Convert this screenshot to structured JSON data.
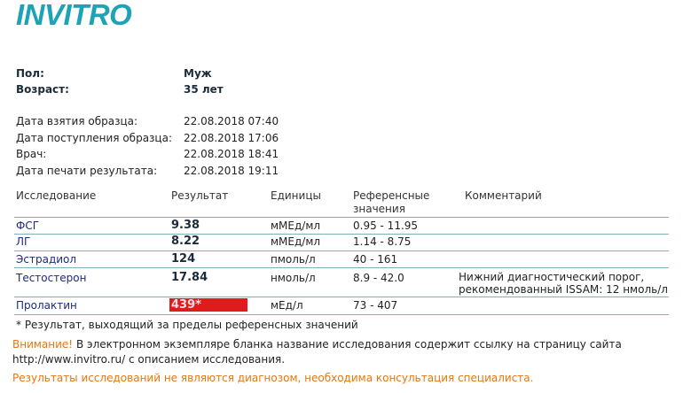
{
  "logo": "INVITRO",
  "patient": {
    "sex_label": "Пол:",
    "sex": "Муж",
    "age_label": "Возраст:",
    "age": "35 лет"
  },
  "dates": [
    {
      "label": "Дата взятия образца:",
      "value": "22.08.2018 07:40"
    },
    {
      "label": "Дата поступления образца:",
      "value": "22.08.2018 17:06"
    },
    {
      "label": "Врач:",
      "value": "22.08.2018 18:41"
    },
    {
      "label": "Дата печати результата:",
      "value": "22.08.2018 19:11"
    }
  ],
  "table": {
    "headers": {
      "test": "Исследование",
      "result": "Результат",
      "units": "Единицы",
      "ref1": "Референсные",
      "ref2": "значения",
      "comment": "Комментарий"
    },
    "rows": [
      {
        "test": "ФСГ",
        "result": "9.38",
        "units": "мМЕд/мл",
        "ref": "0.95 - 11.95"
      },
      {
        "test": "ЛГ",
        "result": "8.22",
        "units": "мМЕд/мл",
        "ref": "1.14 - 8.75"
      },
      {
        "test": "Эстрадиол",
        "result": "124",
        "units": "пмоль/л",
        "ref": "40 - 161"
      },
      {
        "test": "Тестостерон",
        "result": "17.84",
        "units": "нмоль/л",
        "ref": "8.9 - 42.0",
        "comment1": "Нижний диагностический порог,",
        "comment2": "рекомендованный ISSAM: 12 нмоль/л"
      },
      {
        "test": "Пролактин",
        "result": "439*",
        "units": "мЕд/л",
        "ref": "73 - 407",
        "flag_color": "#e01b1b"
      }
    ]
  },
  "footnote": "* Результат, выходящий за пределы референсных значений",
  "notice": {
    "warn": "Внимание!",
    "text": " В электронном экземпляре бланка название исследования содержит ссылку на страницу сайта",
    "line2": "http://www.invitro.ru/ с описанием исследования."
  },
  "disclaimer": "Результаты исследований не являются диагнозом, необходима консультация специалиста."
}
